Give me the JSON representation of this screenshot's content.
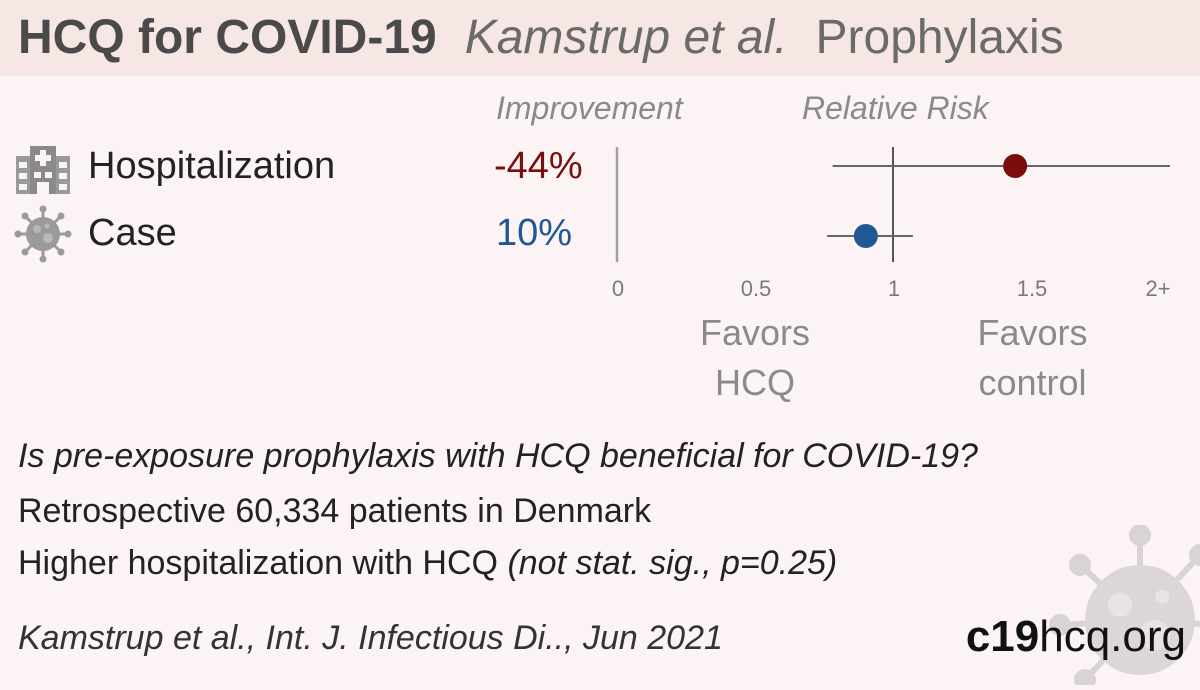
{
  "header": {
    "title_main": "HCQ for COVID-19",
    "title_author": "Kamstrup et al.",
    "title_type": "Prophylaxis"
  },
  "columns": {
    "improvement": "Improvement",
    "relative_risk": "Relative Risk"
  },
  "rows": [
    {
      "label": "Hospitalization",
      "improvement": "-44%",
      "icon": "hospital-icon"
    },
    {
      "label": "Case",
      "improvement": "10%",
      "icon": "virus-icon"
    }
  ],
  "axis": {
    "ticks": [
      "0",
      "0.5",
      "1",
      "1.5",
      "2+"
    ],
    "favors_left": [
      "Favors",
      "HCQ"
    ],
    "favors_right": [
      "Favors",
      "control"
    ]
  },
  "chart_data": {
    "type": "scatter",
    "xlabel": "Relative Risk",
    "xlim": [
      0,
      2
    ],
    "reference_line": 1,
    "series": [
      {
        "name": "Hospitalization",
        "rr": 1.44,
        "ci": [
          0.78,
          2.0
        ],
        "color": "#7a0e0e"
      },
      {
        "name": "Case",
        "rr": 0.9,
        "ci": [
          0.76,
          1.07
        ],
        "color": "#1f5894"
      }
    ]
  },
  "summary": {
    "question": "Is pre-exposure prophylaxis with HCQ beneficial for COVID-19?",
    "design": "Retrospective 60,334 patients in Denmark",
    "finding_main": "Higher hospitalization with HCQ",
    "finding_note": "(not stat. sig., p=0.25)"
  },
  "citation": "Kamstrup et al., Int. J. Infectious Di.., Jun 2021",
  "brand": {
    "bold": "c19",
    "rest": "hcq.org"
  },
  "colors": {
    "header_bg": "#f6e7e5",
    "page_bg": "#fcf4f4",
    "negative": "#7a0e0e",
    "positive": "#1f5894"
  }
}
